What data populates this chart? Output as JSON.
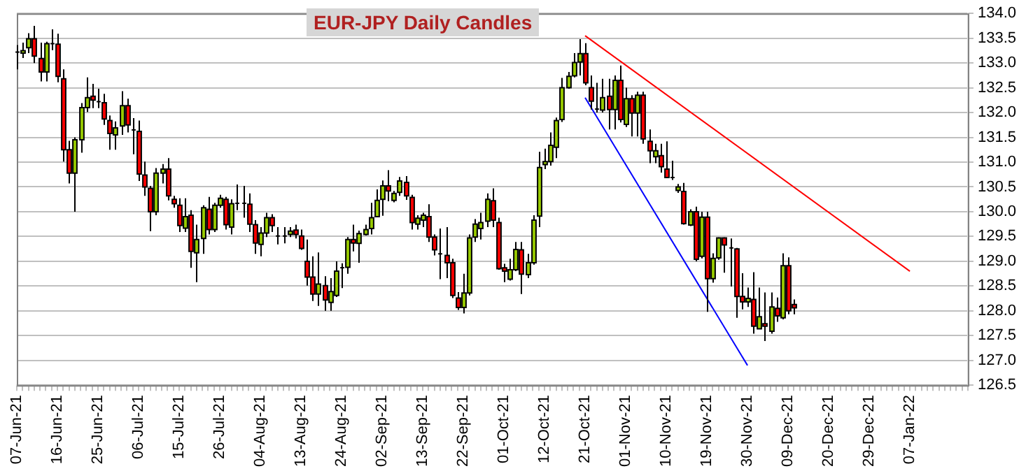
{
  "chart_data": {
    "type": "candlestick",
    "title": "EUR-JPY Daily Candles",
    "categories": [
      "07-Jun-21",
      null,
      null,
      null,
      null,
      null,
      null,
      "16-Jun-21",
      null,
      null,
      null,
      null,
      null,
      null,
      "25-Jun-21",
      null,
      null,
      null,
      null,
      null,
      null,
      "06-Jul-21",
      null,
      null,
      null,
      null,
      null,
      null,
      "15-Jul-21",
      null,
      null,
      null,
      null,
      null,
      null,
      "26-Jul-21",
      null,
      null,
      null,
      null,
      null,
      null,
      "04-Aug-21",
      null,
      null,
      null,
      null,
      null,
      null,
      "13-Aug-21",
      null,
      null,
      null,
      null,
      null,
      null,
      "24-Aug-21",
      null,
      null,
      null,
      null,
      null,
      null,
      "02-Sep-21",
      null,
      null,
      null,
      null,
      null,
      null,
      "13-Sep-21",
      null,
      null,
      null,
      null,
      null,
      null,
      "22-Sep-21",
      null,
      null,
      null,
      null,
      null,
      null,
      "01-Oct-21",
      null,
      null,
      null,
      null,
      null,
      null,
      "12-Oct-21",
      null,
      null,
      null,
      null,
      null,
      null,
      "21-Oct-21",
      null,
      null,
      null,
      null,
      null,
      null,
      "01-Nov-21",
      null,
      null,
      null,
      null,
      null,
      null,
      "10-Nov-21",
      null,
      null,
      null,
      null,
      null,
      null,
      "19-Nov-21",
      null,
      null,
      null,
      null,
      null,
      null,
      "30-Nov-21",
      null,
      null,
      null,
      null,
      null,
      null,
      "09-Dec-21",
      null,
      null,
      null,
      null,
      null,
      null,
      "20-Dec-21",
      null,
      null,
      null,
      null,
      null,
      null,
      "29-Dec-21",
      null,
      null,
      null,
      null,
      null,
      null,
      "07-Jan-22",
      null,
      null,
      null,
      null,
      null,
      null,
      null,
      null,
      null,
      null
    ],
    "ohlc": [
      [
        133.22,
        133.36,
        132.87,
        133.2
      ],
      [
        133.2,
        133.41,
        133.1,
        133.25
      ],
      [
        133.31,
        133.6,
        133.2,
        133.49
      ],
      [
        133.49,
        133.75,
        133.0,
        133.14
      ],
      [
        133.09,
        133.41,
        132.63,
        132.82
      ],
      [
        132.82,
        133.43,
        132.63,
        133.39
      ],
      [
        133.39,
        133.68,
        133.26,
        133.38
      ],
      [
        133.38,
        133.59,
        132.61,
        132.73
      ],
      [
        132.68,
        132.87,
        131.01,
        131.25
      ],
      [
        131.25,
        131.43,
        130.57,
        130.78
      ],
      [
        130.78,
        131.5,
        130.0,
        131.45
      ],
      [
        131.45,
        132.19,
        131.19,
        132.1
      ],
      [
        132.1,
        132.71,
        132.01,
        132.3
      ],
      [
        132.33,
        132.58,
        132.09,
        132.25
      ],
      [
        132.22,
        132.48,
        132.09,
        132.2
      ],
      [
        132.2,
        132.38,
        131.75,
        131.87
      ],
      [
        131.84,
        131.94,
        131.25,
        131.58
      ],
      [
        131.55,
        131.82,
        131.25,
        131.69
      ],
      [
        131.73,
        132.43,
        131.55,
        132.14
      ],
      [
        132.14,
        132.28,
        131.6,
        131.75
      ],
      [
        131.65,
        131.89,
        131.16,
        131.64
      ],
      [
        131.62,
        131.84,
        130.62,
        130.76
      ],
      [
        130.74,
        131.01,
        130.32,
        130.5
      ],
      [
        130.47,
        130.52,
        129.61,
        130.0
      ],
      [
        130.0,
        130.88,
        129.93,
        130.78
      ],
      [
        130.78,
        130.96,
        130.57,
        130.86
      ],
      [
        130.86,
        131.08,
        130.23,
        130.32
      ],
      [
        130.25,
        130.32,
        130.08,
        130.16
      ],
      [
        130.13,
        130.27,
        129.59,
        129.72
      ],
      [
        129.67,
        130.27,
        129.59,
        129.9
      ],
      [
        129.93,
        130.03,
        128.87,
        129.2
      ],
      [
        129.17,
        129.74,
        128.58,
        129.44
      ],
      [
        129.46,
        130.13,
        129.15,
        130.08
      ],
      [
        130.05,
        130.3,
        129.54,
        129.64
      ],
      [
        129.64,
        130.18,
        129.59,
        130.13
      ],
      [
        130.13,
        130.34,
        130.08,
        130.27
      ],
      [
        130.25,
        130.3,
        129.64,
        129.74
      ],
      [
        129.69,
        130.25,
        129.54,
        130.16
      ],
      [
        130.17,
        130.55,
        130.03,
        130.16
      ],
      [
        130.16,
        130.52,
        129.88,
        130.17
      ],
      [
        130.15,
        130.37,
        129.59,
        129.75
      ],
      [
        129.74,
        129.83,
        129.15,
        129.37
      ],
      [
        129.34,
        129.69,
        129.1,
        129.57
      ],
      [
        129.57,
        129.98,
        129.49,
        129.88
      ],
      [
        129.88,
        129.95,
        129.59,
        129.72
      ],
      [
        129.51,
        129.69,
        129.34,
        129.5
      ],
      [
        129.51,
        129.69,
        129.36,
        129.5
      ],
      [
        129.54,
        129.69,
        129.49,
        129.61
      ],
      [
        129.63,
        129.74,
        129.46,
        129.54
      ],
      [
        129.51,
        129.64,
        129.23,
        129.26
      ],
      [
        129.0,
        129.44,
        128.51,
        128.68
      ],
      [
        128.68,
        129.1,
        128.2,
        128.34
      ],
      [
        128.34,
        129.18,
        128.1,
        128.54
      ],
      [
        128.51,
        128.7,
        128.0,
        128.22
      ],
      [
        128.17,
        128.66,
        128.0,
        128.39
      ],
      [
        128.31,
        129.0,
        128.28,
        128.8
      ],
      [
        128.87,
        128.96,
        128.46,
        128.87
      ],
      [
        128.88,
        129.49,
        128.75,
        129.44
      ],
      [
        129.44,
        129.74,
        129.2,
        129.37
      ],
      [
        129.36,
        129.62,
        128.97,
        129.56
      ],
      [
        129.54,
        129.74,
        129.52,
        129.64
      ],
      [
        129.66,
        130.18,
        129.54,
        129.88
      ],
      [
        129.9,
        130.45,
        129.89,
        130.23
      ],
      [
        130.25,
        130.63,
        129.92,
        130.52
      ],
      [
        130.52,
        130.84,
        130.21,
        130.42
      ],
      [
        130.23,
        130.42,
        130.19,
        130.37
      ],
      [
        130.39,
        130.7,
        130.32,
        130.62
      ],
      [
        130.59,
        130.72,
        130.24,
        130.32
      ],
      [
        130.29,
        130.34,
        129.64,
        129.78
      ],
      [
        129.75,
        129.93,
        129.64,
        129.87
      ],
      [
        129.83,
        129.98,
        129.69,
        129.93
      ],
      [
        129.9,
        130.15,
        129.39,
        129.49
      ],
      [
        129.49,
        129.54,
        129.12,
        129.23
      ],
      [
        129.15,
        129.66,
        128.64,
        129.15
      ],
      [
        129.12,
        129.69,
        128.66,
        128.97
      ],
      [
        128.97,
        129.05,
        128.26,
        128.31
      ],
      [
        128.26,
        128.38,
        128.02,
        128.07
      ],
      [
        128.07,
        128.75,
        127.95,
        128.36
      ],
      [
        128.36,
        129.54,
        128.31,
        129.47
      ],
      [
        129.49,
        129.85,
        129.39,
        129.75
      ],
      [
        129.66,
        129.98,
        129.44,
        129.78
      ],
      [
        129.81,
        130.37,
        129.69,
        130.25
      ],
      [
        130.22,
        130.47,
        129.69,
        129.83
      ],
      [
        129.78,
        129.88,
        128.83,
        128.85
      ],
      [
        128.87,
        128.95,
        128.58,
        128.8
      ],
      [
        128.64,
        129.05,
        128.61,
        128.83
      ],
      [
        128.83,
        129.39,
        128.8,
        129.24
      ],
      [
        129.23,
        129.39,
        128.34,
        128.74
      ],
      [
        128.73,
        129.15,
        128.66,
        128.97
      ],
      [
        128.97,
        129.93,
        128.93,
        129.83
      ],
      [
        129.91,
        131.21,
        129.69,
        130.89
      ],
      [
        130.95,
        131.27,
        130.86,
        131.01
      ],
      [
        131.01,
        131.6,
        130.93,
        131.34
      ],
      [
        131.3,
        131.9,
        131.08,
        131.84
      ],
      [
        131.86,
        132.7,
        131.81,
        132.5
      ],
      [
        132.5,
        132.82,
        132.48,
        132.73
      ],
      [
        132.74,
        133.2,
        132.71,
        133.01
      ],
      [
        133.02,
        133.48,
        132.75,
        133.19
      ],
      [
        133.19,
        133.4,
        132.55,
        132.6
      ],
      [
        132.5,
        132.75,
        132.06,
        132.23
      ],
      [
        132.07,
        132.6,
        132.0,
        132.07
      ],
      [
        132.05,
        132.68,
        132.0,
        132.3
      ],
      [
        132.33,
        132.68,
        131.66,
        132.06
      ],
      [
        132.06,
        132.75,
        131.66,
        132.65
      ],
      [
        132.65,
        132.95,
        131.8,
        131.86
      ],
      [
        131.76,
        132.5,
        131.71,
        132.28
      ],
      [
        132.28,
        132.35,
        131.52,
        131.99
      ],
      [
        131.99,
        132.42,
        131.52,
        132.35
      ],
      [
        132.35,
        132.42,
        131.37,
        131.47
      ],
      [
        131.42,
        131.66,
        130.98,
        131.23
      ],
      [
        131.11,
        131.37,
        130.98,
        131.23
      ],
      [
        131.13,
        131.37,
        130.79,
        130.91
      ],
      [
        130.86,
        131.42,
        130.69,
        130.69
      ],
      [
        130.69,
        131.03,
        130.64,
        130.69
      ],
      [
        130.43,
        130.56,
        130.38,
        130.5
      ],
      [
        130.41,
        130.58,
        129.74,
        129.76
      ],
      [
        129.73,
        130.05,
        129.71,
        130.0
      ],
      [
        130.0,
        130.1,
        129.0,
        129.04
      ],
      [
        129.1,
        130.0,
        129.06,
        129.89
      ],
      [
        129.89,
        130.0,
        127.98,
        128.65
      ],
      [
        128.65,
        129.16,
        128.57,
        129.06
      ],
      [
        129.07,
        129.48,
        129.03,
        129.47
      ],
      [
        129.47,
        129.48,
        128.77,
        129.33
      ],
      [
        129.27,
        129.46,
        128.49,
        129.27
      ],
      [
        129.25,
        129.27,
        127.86,
        128.29
      ],
      [
        128.29,
        128.76,
        128.03,
        128.18
      ],
      [
        128.18,
        128.47,
        128.08,
        128.25
      ],
      [
        128.23,
        128.78,
        127.54,
        127.69
      ],
      [
        127.64,
        128.47,
        127.64,
        127.88
      ],
      [
        127.74,
        128.37,
        127.39,
        127.69
      ],
      [
        127.59,
        128.37,
        127.54,
        128.08
      ],
      [
        128.05,
        128.27,
        127.78,
        127.9
      ],
      [
        127.86,
        129.16,
        127.83,
        128.91
      ],
      [
        128.91,
        129.08,
        127.93,
        128.0
      ],
      [
        128.13,
        128.23,
        127.93,
        128.06
      ],
      null,
      null,
      null,
      null,
      null,
      null,
      null,
      null,
      null,
      null,
      null,
      null,
      null,
      null,
      null,
      null,
      null,
      null,
      null,
      null,
      null,
      null,
      null,
      null,
      null,
      null,
      null,
      null,
      null,
      null
    ],
    "series": [
      {
        "type": "line",
        "color": "#ff0000",
        "x": [
          "21-Oct-21",
          "07-Jan-22"
        ],
        "values": [
          133.55,
          128.8
        ]
      },
      {
        "type": "line",
        "color": "#0000ff",
        "x": [
          "21-Oct-21",
          "30-Nov-21"
        ],
        "values": [
          132.3,
          126.9
        ]
      }
    ],
    "ylim": [
      126.5,
      134.0
    ],
    "yticks": [
      {
        "value": 126.5,
        "label": "126.5"
      },
      {
        "value": 127,
        "label": "127.0"
      },
      127.5,
      {
        "value": 128,
        "label": "128.0"
      },
      128.5,
      {
        "value": 129,
        "label": "129.0"
      },
      129.5,
      {
        "value": 130,
        "label": "130.0"
      },
      130.5,
      {
        "value": 131,
        "label": "131.0"
      },
      131.5,
      {
        "value": 132,
        "label": "132.0"
      },
      132.5,
      {
        "value": 133,
        "label": "133.0"
      },
      133.5,
      {
        "value": 134,
        "label": "134.0"
      }
    ],
    "grid": "y"
  }
}
